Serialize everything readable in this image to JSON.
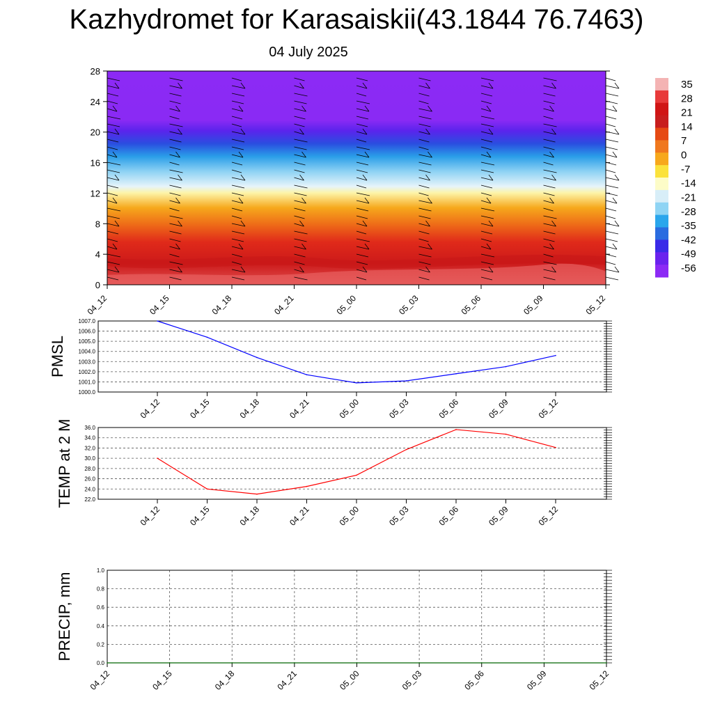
{
  "header": {
    "title": "Kazhydromet for Karasaiskii(43.1844 76.7463)",
    "date": "04 July 2025"
  },
  "colorbar": {
    "labels": [
      "35",
      "28",
      "21",
      "14",
      "7",
      "0",
      "-7",
      "-14",
      "-21",
      "-28",
      "-35",
      "-42",
      "-49",
      "-56"
    ],
    "colors": [
      "#f4b3b3",
      "#e83a3a",
      "#d01515",
      "#c81e1e",
      "#e64a14",
      "#f0781e",
      "#f7a81c",
      "#fbe23c",
      "#fdfcc8",
      "#d8eef8",
      "#8fd4f4",
      "#2aa6ec",
      "#2a6ce0",
      "#3a2ae8",
      "#6a22ee",
      "#8c2af5"
    ]
  },
  "chart_data": [
    {
      "name": "vertical-temperature-profile",
      "type": "heatmap",
      "categories": [
        "04_12",
        "04_15",
        "04_18",
        "04_21",
        "05_00",
        "05_03",
        "05_06",
        "05_09",
        "05_12"
      ],
      "y_ticks": [
        "0",
        "4",
        "8",
        "12",
        "16",
        "20",
        "24",
        "28"
      ],
      "ylim": [
        0,
        28
      ],
      "color_scale": [
        -56,
        35
      ],
      "notes": "filled temperature contours with wind barbs"
    },
    {
      "name": "pmsl",
      "type": "line",
      "ylabel": "PMSL",
      "ylim": [
        1000,
        1007
      ],
      "y_ticks": [
        "1000.0",
        "1001.0",
        "1002.0",
        "1003.0",
        "1004.0",
        "1005.0",
        "1006.0",
        "1007.0"
      ],
      "categories": [
        "04_12",
        "04_15",
        "04_18",
        "04_21",
        "05_00",
        "05_03",
        "05_06",
        "05_09",
        "05_12"
      ],
      "values": [
        1007.0,
        1005.4,
        1003.4,
        1001.7,
        1000.9,
        1001.1,
        1001.8,
        1002.5,
        1003.6
      ],
      "color": "#0000ff",
      "grid": true
    },
    {
      "name": "temp-2m",
      "type": "line",
      "ylabel": "TEMP at 2 M",
      "ylim": [
        22,
        36
      ],
      "y_ticks": [
        "22.0",
        "24.0",
        "26.0",
        "28.0",
        "30.0",
        "32.0",
        "34.0",
        "36.0"
      ],
      "categories": [
        "04_12",
        "04_15",
        "04_18",
        "04_21",
        "05_00",
        "05_03",
        "05_06",
        "05_09",
        "05_12"
      ],
      "values": [
        30.0,
        24.0,
        23.0,
        24.5,
        26.7,
        31.7,
        35.6,
        34.7,
        32.1
      ],
      "color": "#ff0000",
      "grid": true
    },
    {
      "name": "precip",
      "type": "line",
      "ylabel": "PRECIP, mm",
      "ylim": [
        0,
        1
      ],
      "y_ticks": [
        "0.0",
        "0.2",
        "0.4",
        "0.6",
        "0.8",
        "1.0"
      ],
      "categories": [
        "04_12",
        "04_15",
        "04_18",
        "04_21",
        "05_00",
        "05_03",
        "05_06",
        "05_09",
        "05_12"
      ],
      "values": [
        0,
        0,
        0,
        0,
        0,
        0,
        0,
        0,
        0
      ],
      "color": "#006400",
      "grid": true
    }
  ]
}
